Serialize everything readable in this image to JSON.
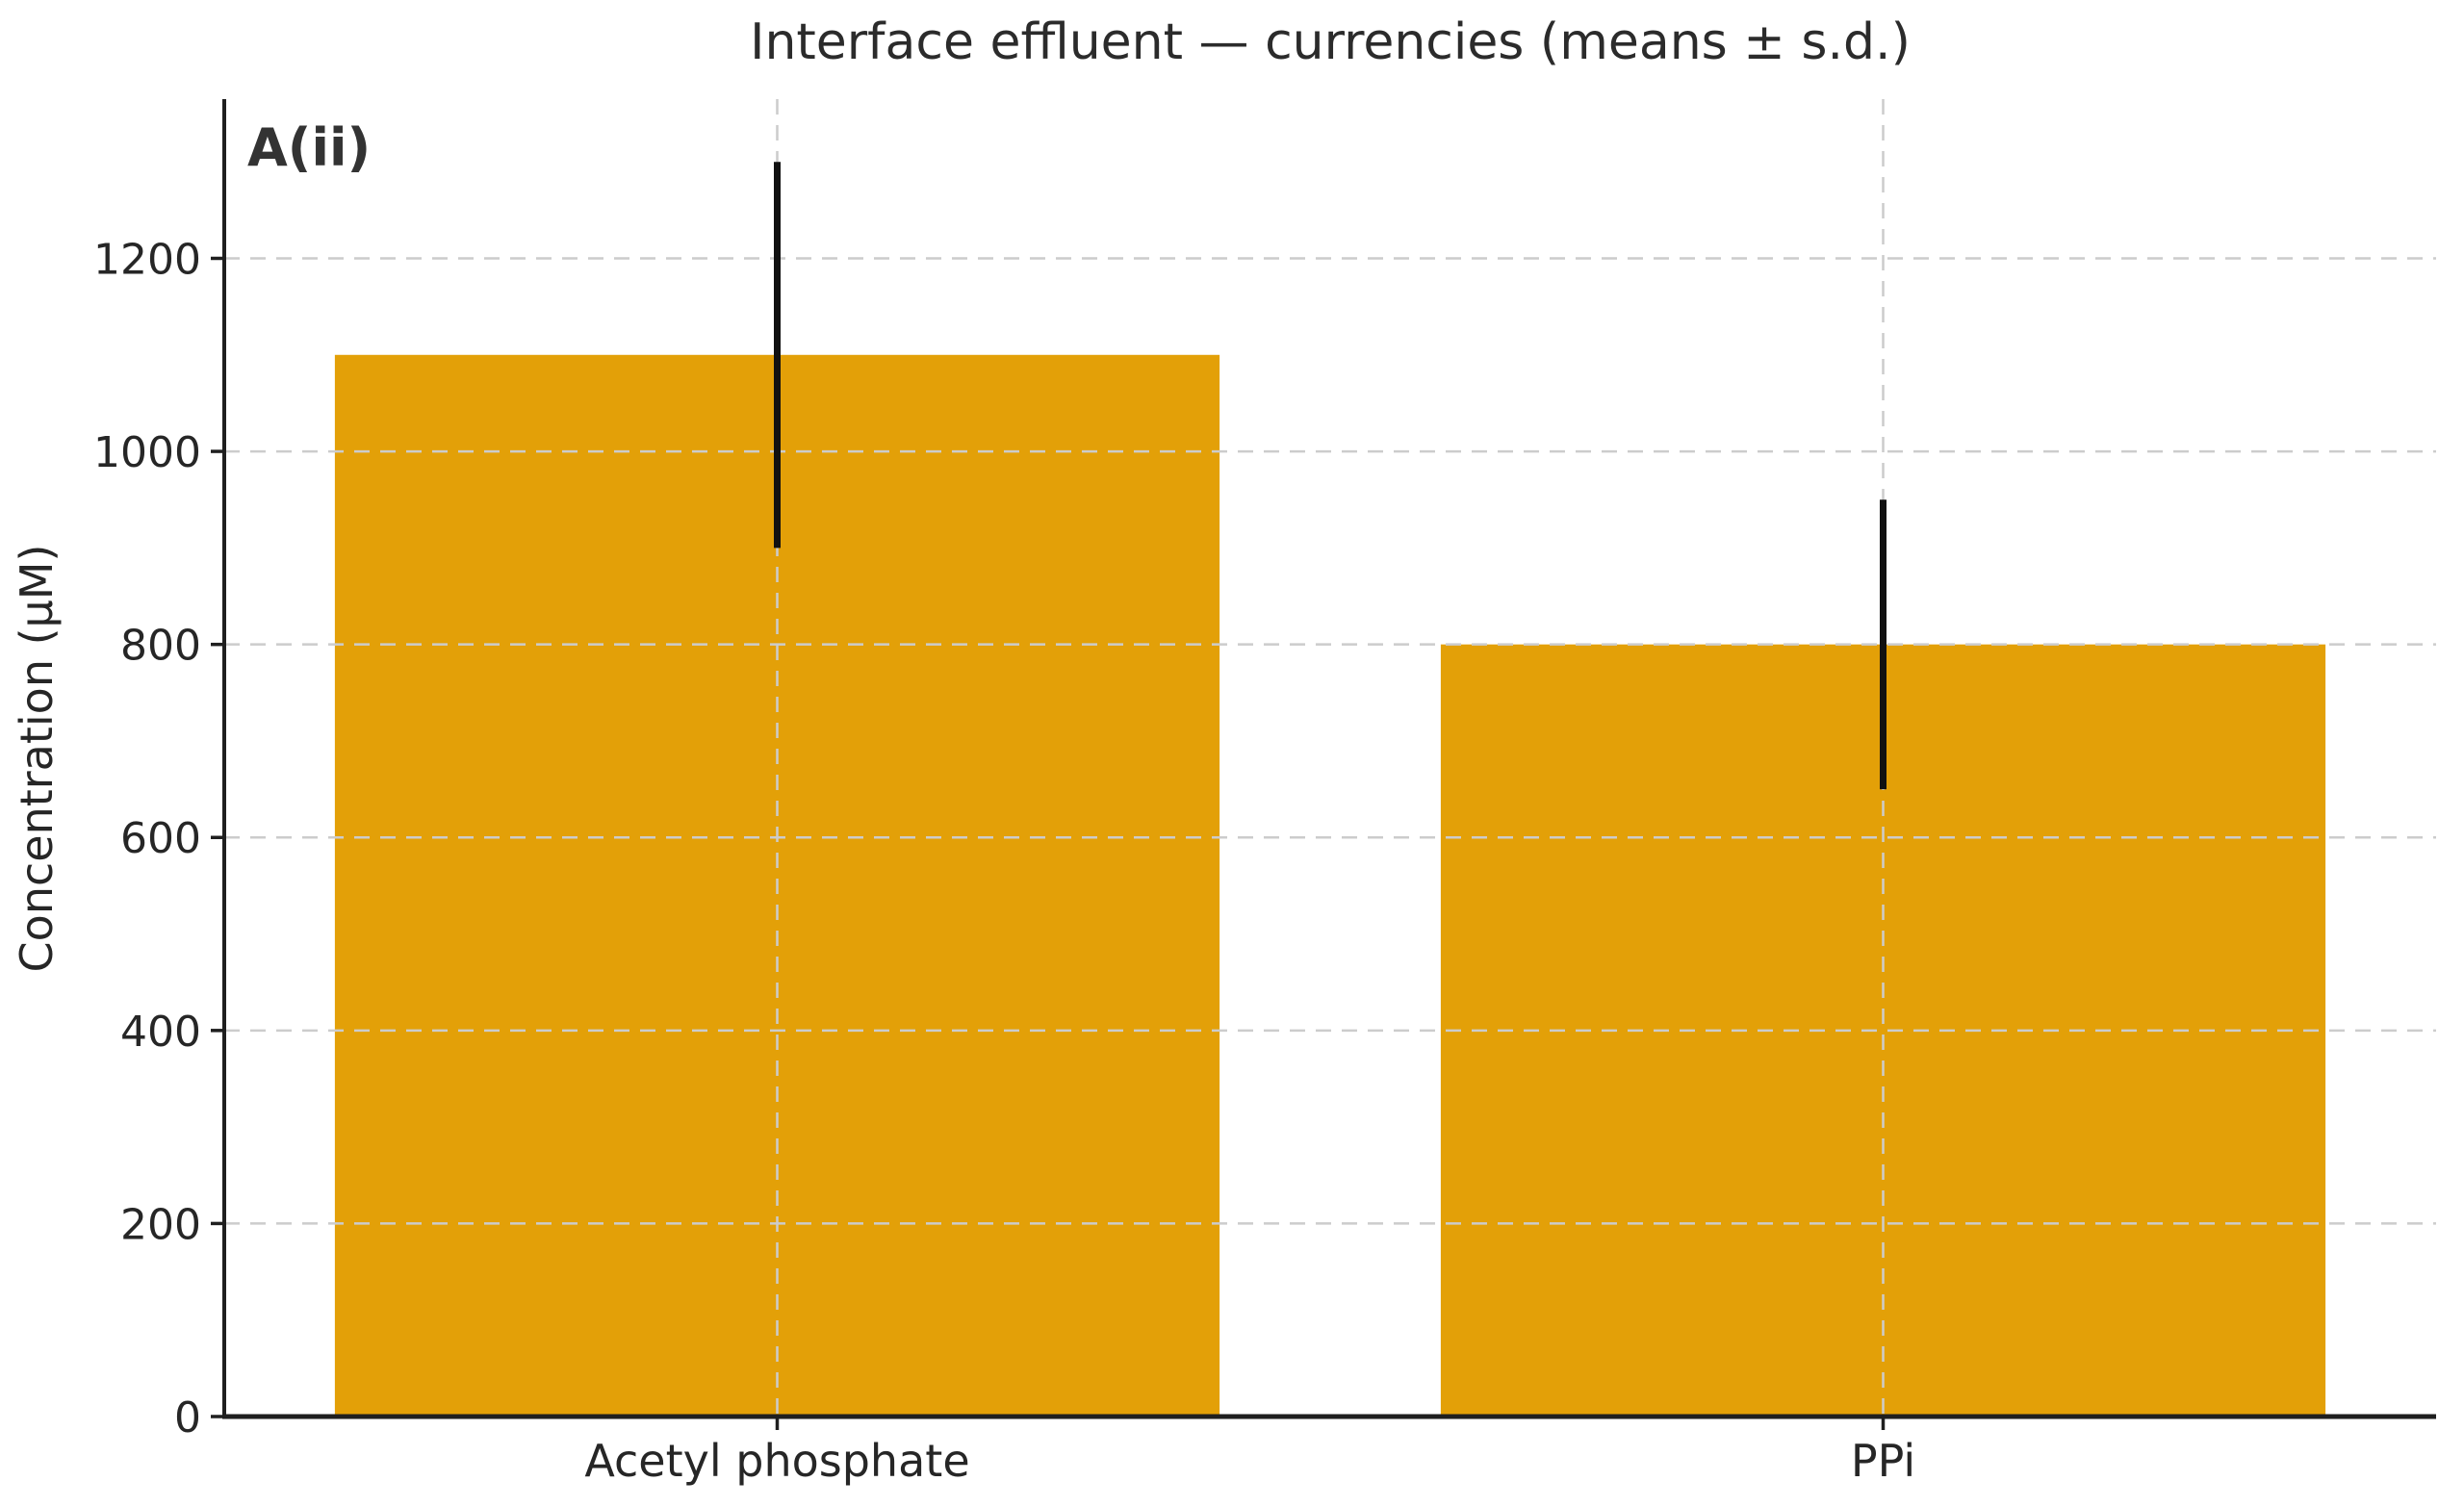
{
  "chart_data": {
    "type": "bar",
    "title": "Interface effluent — currencies (means ± s.d.)",
    "panel_label": "A(ii)",
    "ylabel": "Concentration (µM)",
    "xlabel": "",
    "categories": [
      "Acetyl phosphate",
      "PPi"
    ],
    "values": [
      1100,
      800
    ],
    "errors": [
      200,
      150
    ],
    "yticks": [
      0,
      200,
      400,
      600,
      800,
      1000,
      1200
    ],
    "ylim": [
      0,
      1365
    ],
    "grid": true,
    "grid_axes": "both",
    "legend": "none",
    "colors": {
      "bar": "#E3A008",
      "error_bar": "#111111",
      "grid": "#CCCCCC",
      "spine": "#1F1F1F",
      "text": "#262626"
    }
  }
}
